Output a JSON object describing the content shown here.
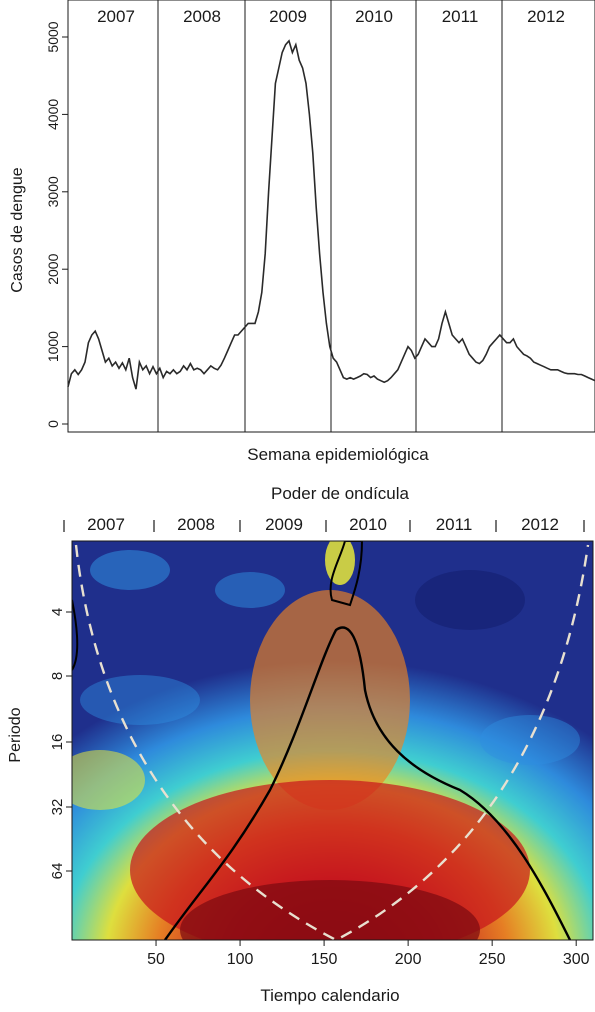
{
  "chart_data": [
    {
      "type": "line",
      "title": "",
      "xlabel": "Semana epidemiológica",
      "ylabel": "Casos de dengue",
      "ylim": [
        0,
        5000
      ],
      "yticks": [
        "0",
        "1000",
        "2000",
        "3000",
        "4000",
        "5000"
      ],
      "year_labels": [
        "2007",
        "2008",
        "2009",
        "2010",
        "2011",
        "2012"
      ],
      "grid": false,
      "series": [
        {
          "x": [
            0,
            2,
            4,
            6,
            8,
            10,
            12,
            14,
            16,
            18,
            20,
            22,
            24,
            26,
            28,
            30,
            32,
            34,
            36,
            38,
            40,
            42,
            44,
            46,
            48,
            50,
            52,
            54,
            56,
            58,
            60,
            62,
            64,
            66,
            68,
            70,
            72,
            74,
            76,
            78,
            80,
            82,
            84,
            86,
            88,
            90,
            92,
            94,
            96,
            98,
            100,
            102,
            104,
            106,
            108,
            110,
            112,
            114,
            116,
            118,
            120,
            122,
            124,
            126,
            128,
            130,
            132,
            134,
            136,
            138,
            140,
            142,
            144,
            146,
            148,
            150,
            152,
            154,
            156,
            158,
            160,
            162,
            164,
            166,
            168,
            170,
            172,
            174,
            176,
            178,
            180,
            182,
            184,
            186,
            188,
            190,
            192,
            194,
            196,
            198,
            200,
            202,
            204,
            206,
            208,
            210,
            212,
            214,
            216,
            218,
            220,
            222,
            224,
            226,
            228,
            230,
            232,
            234,
            236,
            238,
            240,
            242,
            244,
            246,
            248,
            250,
            252,
            254,
            256,
            258,
            260,
            262,
            264,
            266,
            268,
            270,
            272,
            274,
            276,
            278,
            280,
            282,
            284,
            286,
            288,
            290,
            292,
            294,
            296,
            298,
            300,
            302,
            304,
            306,
            308,
            310
          ],
          "values": [
            480,
            650,
            700,
            640,
            700,
            800,
            1050,
            1150,
            1200,
            1100,
            950,
            800,
            850,
            750,
            800,
            720,
            790,
            700,
            850,
            600,
            450,
            800,
            700,
            750,
            650,
            740,
            650,
            720,
            600,
            680,
            650,
            700,
            650,
            680,
            750,
            700,
            780,
            700,
            720,
            700,
            650,
            700,
            750,
            720,
            700,
            760,
            850,
            950,
            1050,
            1150,
            1150,
            1200,
            1250,
            1300,
            1300,
            1300,
            1450,
            1700,
            2200,
            3000,
            3700,
            4400,
            4600,
            4800,
            4900,
            4950,
            4800,
            4900,
            4700,
            4600,
            4400,
            4000,
            3500,
            2800,
            2200,
            1700,
            1300,
            1000,
            850,
            800,
            700,
            600,
            580,
            600,
            580,
            600,
            620,
            650,
            640,
            600,
            620,
            580,
            560,
            540,
            560,
            600,
            650,
            700,
            800,
            900,
            1000,
            950,
            850,
            900,
            1000,
            1100,
            1050,
            1000,
            1000,
            1100,
            1300,
            1450,
            1300,
            1150,
            1100,
            1050,
            1100,
            1000,
            900,
            850,
            800,
            780,
            820,
            900,
            1000,
            1050,
            1100,
            1150,
            1100,
            1050,
            1050,
            1100,
            1000,
            950,
            900,
            880,
            850,
            800,
            780,
            760,
            740,
            720,
            700,
            700,
            700,
            680,
            660,
            650,
            650,
            650,
            640,
            640,
            620,
            600,
            580,
            560
          ]
        }
      ]
    },
    {
      "type": "heatmap",
      "title": "Poder de ondícula",
      "xlabel": "Tiempo calendario",
      "ylabel": "Periodo",
      "x_ticks": [
        "50",
        "100",
        "150",
        "200",
        "250",
        "300"
      ],
      "y_ticks": [
        "4",
        "8",
        "16",
        "32",
        "64"
      ],
      "year_labels": [
        "2007",
        "2008",
        "2009",
        "2010",
        "2011",
        "2012"
      ],
      "xlim": [
        0,
        310
      ],
      "colors": {
        "low": "#1f2f8c",
        "mid_low": "#2f8fe0",
        "mid": "#41d6d4",
        "mid_high": "#e8e83a",
        "high": "#f0821e",
        "peak": "#c8141c",
        "max": "#7a0a10",
        "cone": "#e8e0d0",
        "contour": "#000000"
      }
    }
  ]
}
